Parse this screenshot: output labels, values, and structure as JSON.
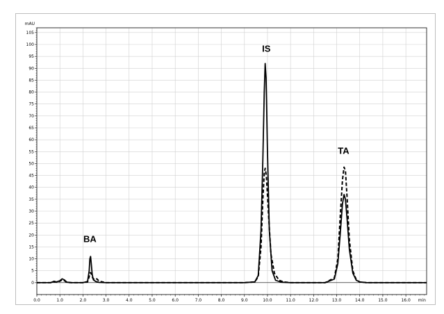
{
  "chart_data": {
    "type": "line",
    "ylabel": "mAU",
    "xlabel": "min",
    "xlim": [
      0.0,
      16.9
    ],
    "ylim": [
      -5,
      107
    ],
    "x_ticks": [
      "0.0",
      "1.0",
      "2.0",
      "3.0",
      "4.0",
      "5.0",
      "6.0",
      "7.0",
      "8.0",
      "9.0",
      "10.0",
      "11.0",
      "12.0",
      "13.0",
      "14.0",
      "15.0",
      "16.0"
    ],
    "y_ticks": [
      "0",
      "5",
      "10",
      "15",
      "20",
      "25",
      "30",
      "35",
      "40",
      "45",
      "50",
      "55",
      "60",
      "65",
      "70",
      "75",
      "80",
      "85",
      "90",
      "95",
      "100",
      "105"
    ],
    "grid": true,
    "series": [
      {
        "style": "solid",
        "x": [
          0.0,
          0.6,
          0.75,
          0.85,
          1.0,
          1.1,
          1.2,
          1.3,
          1.5,
          2.0,
          2.2,
          2.27,
          2.3,
          2.33,
          2.36,
          2.4,
          2.45,
          2.55,
          2.7,
          3.0,
          5.0,
          7.0,
          9.0,
          9.45,
          9.6,
          9.72,
          9.8,
          9.86,
          9.9,
          9.94,
          10.0,
          10.08,
          10.2,
          10.35,
          10.6,
          11.0,
          12.5,
          12.9,
          13.05,
          13.15,
          13.25,
          13.32,
          13.38,
          13.45,
          13.55,
          13.7,
          13.85,
          14.0,
          14.3,
          16.9
        ],
        "y": [
          0,
          0,
          0.6,
          0.3,
          0.8,
          1.6,
          1.1,
          0.2,
          0,
          0,
          0.5,
          5,
          10,
          11,
          8,
          3.5,
          1.2,
          0.5,
          0.1,
          0,
          0,
          0,
          0,
          0.3,
          3,
          22,
          52,
          80,
          92,
          86,
          55,
          22,
          5,
          1,
          0.2,
          0,
          0,
          1.5,
          8,
          20,
          33,
          37,
          35,
          27,
          14,
          4,
          1,
          0.3,
          0,
          0
        ]
      },
      {
        "style": "dashed",
        "x": [
          0.0,
          0.6,
          0.75,
          0.85,
          1.0,
          1.1,
          1.2,
          1.3,
          1.5,
          2.0,
          2.2,
          2.27,
          2.3,
          2.33,
          2.37,
          2.42,
          2.5,
          2.6,
          2.7,
          3.0,
          5.0,
          7.0,
          9.0,
          9.45,
          9.6,
          9.72,
          9.8,
          9.86,
          9.9,
          9.95,
          10.05,
          10.15,
          10.3,
          10.5,
          10.7,
          11.0,
          12.5,
          12.9,
          13.05,
          13.15,
          13.25,
          13.32,
          13.38,
          13.45,
          13.55,
          13.7,
          13.85,
          14.0,
          14.3,
          16.9
        ],
        "y": [
          0,
          0,
          0.4,
          0.2,
          0.6,
          1.2,
          0.8,
          0.1,
          0,
          0,
          0.3,
          2.5,
          4,
          4.2,
          3.5,
          2,
          1.2,
          1.6,
          0.6,
          0,
          0,
          0,
          0,
          0.3,
          2.5,
          15,
          35,
          46,
          48,
          45,
          28,
          12,
          4,
          1,
          0.3,
          0,
          0,
          2,
          10,
          27,
          43,
          48.5,
          47,
          36,
          18,
          5,
          1.2,
          0.3,
          0,
          0
        ]
      }
    ],
    "annotations": [
      {
        "text": "BA",
        "x": 2.3,
        "y": 17
      },
      {
        "text": "IS",
        "x": 9.95,
        "y": 97
      },
      {
        "text": "TA",
        "x": 13.3,
        "y": 54
      }
    ]
  }
}
